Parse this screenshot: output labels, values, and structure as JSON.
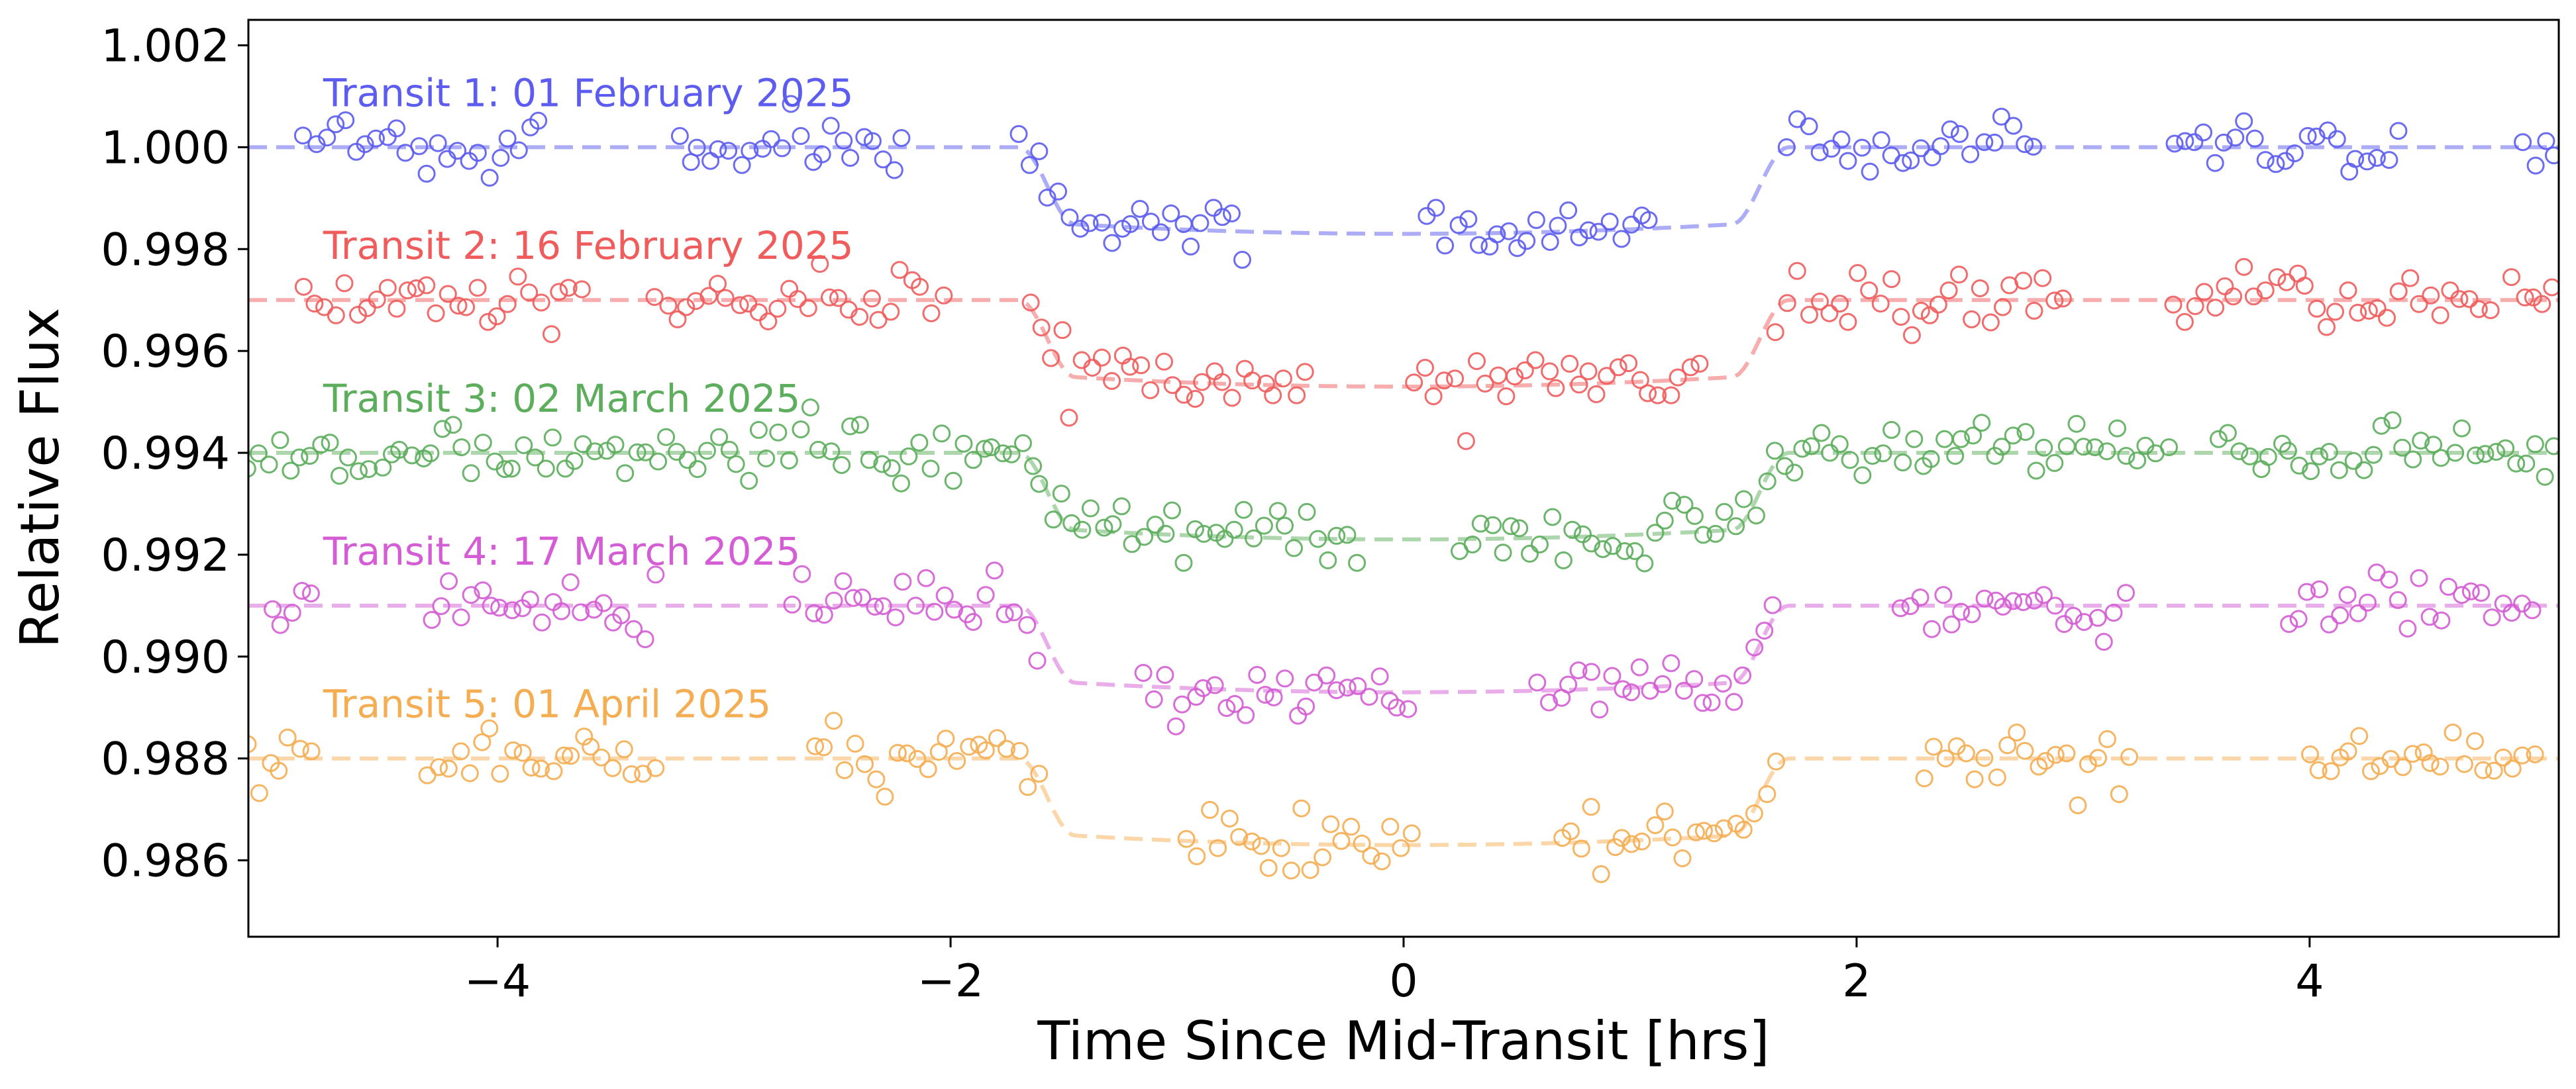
{
  "chart_data": {
    "type": "scatter",
    "title": "",
    "xlabel": "Time Since Mid-Transit [hrs]",
    "ylabel": "Relative Flux",
    "xlim": [
      -5.1,
      5.1
    ],
    "ylim": [
      0.9845,
      1.0025
    ],
    "x_ticks": [
      -4,
      -2,
      0,
      2,
      4
    ],
    "x_tick_labels": [
      "−4",
      "−2",
      "0",
      "2",
      "4"
    ],
    "y_ticks": [
      0.986,
      0.988,
      0.99,
      0.992,
      0.994,
      0.996,
      0.998,
      1.0,
      1.002
    ],
    "y_tick_labels": [
      "0.986",
      "0.988",
      "0.990",
      "0.992",
      "0.994",
      "0.996",
      "0.998",
      "1.000",
      "1.002"
    ],
    "grid": false,
    "transit_model": {
      "ingress_start": -1.7,
      "egress_end": 1.7,
      "ingress_duration": 0.25
    },
    "series": [
      {
        "name": "Transit 1: 01 February 2025",
        "color": "#5c5cf0",
        "baseline": 1.0,
        "depth": 0.0017,
        "windows": [
          [
            -4.85,
            -3.8
          ],
          [
            -3.2,
            -2.2
          ],
          [
            -1.7,
            -0.7
          ],
          [
            0.1,
            1.1
          ],
          [
            1.7,
            2.8
          ],
          [
            3.4,
            4.4
          ],
          [
            4.95,
            5.1
          ]
        ],
        "x": [],
        "y": []
      },
      {
        "name": "Transit 2: 16 February 2025",
        "color": "#f05c5c",
        "baseline": 0.997,
        "depth": 0.0017,
        "windows": [
          [
            -4.85,
            -3.6
          ],
          [
            -3.3,
            -2.0
          ],
          [
            -1.65,
            -0.4
          ],
          [
            0.05,
            1.35
          ],
          [
            1.65,
            2.95
          ],
          [
            3.4,
            4.8
          ],
          [
            4.9,
            5.1
          ]
        ],
        "x": [],
        "y": []
      },
      {
        "name": "Transit 3: 02 March 2025",
        "color": "#5cad5c",
        "baseline": 0.994,
        "depth": 0.0017,
        "windows": [
          [
            -5.1,
            -1.6
          ],
          [
            -1.6,
            -0.2
          ],
          [
            0.25,
            1.75
          ],
          [
            1.75,
            3.4
          ],
          [
            3.6,
            5.1
          ]
        ],
        "x": [],
        "y": []
      },
      {
        "name": "Transit 4: 17 March 2025",
        "color": "#d45cd4",
        "baseline": 0.991,
        "depth": 0.0017,
        "windows": [
          [
            -5.0,
            -4.8
          ],
          [
            -4.3,
            -3.3
          ],
          [
            -2.7,
            -1.6
          ],
          [
            -1.15,
            0.05
          ],
          [
            0.6,
            1.65
          ],
          [
            2.2,
            3.2
          ],
          [
            3.9,
            5.0
          ]
        ],
        "x": [],
        "y": []
      },
      {
        "name": "Transit 5: 01 April 2025",
        "color": "#f5ad52",
        "baseline": 0.988,
        "depth": 0.0017,
        "windows": [
          [
            -5.1,
            -4.8
          ],
          [
            -4.3,
            -3.3
          ],
          [
            -2.6,
            -1.6
          ],
          [
            -0.95,
            0.05
          ],
          [
            0.7,
            1.65
          ],
          [
            2.3,
            3.2
          ],
          [
            4.0,
            5.0
          ]
        ],
        "x": [],
        "y": []
      }
    ]
  }
}
